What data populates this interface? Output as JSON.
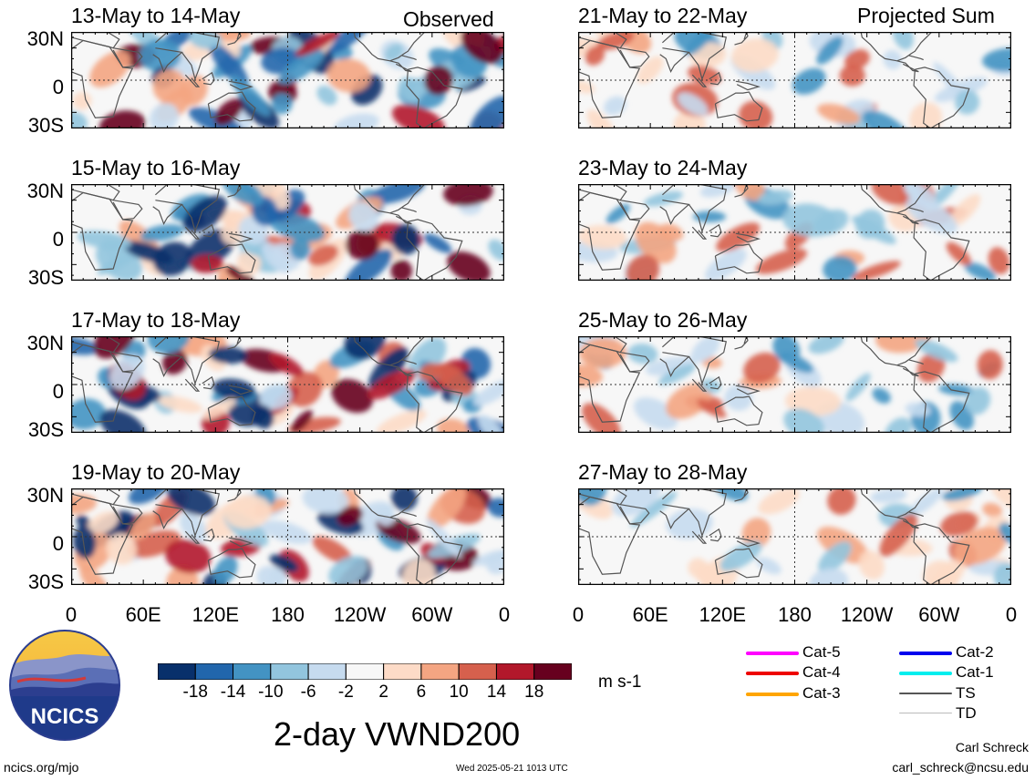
{
  "tags": {
    "observed": "Observed",
    "projected": "Projected Sum"
  },
  "panels": [
    {
      "title": "13-May to 14-May"
    },
    {
      "title": "15-May to 16-May"
    },
    {
      "title": "17-May to 18-May"
    },
    {
      "title": "19-May to 20-May"
    },
    {
      "title": "21-May to 22-May"
    },
    {
      "title": "23-May to 24-May"
    },
    {
      "title": "25-May to 26-May"
    },
    {
      "title": "27-May to 28-May"
    }
  ],
  "lat_labels": [
    "30N",
    "0",
    "30S"
  ],
  "lon_labels": [
    "0",
    "60E",
    "120E",
    "180",
    "120W",
    "60W",
    "0"
  ],
  "colorbar": {
    "ticks": [
      "-18",
      "-14",
      "-10",
      "-6",
      "-2",
      "2",
      "6",
      "10",
      "14",
      "18"
    ],
    "colors": [
      "#08306b",
      "#2166ac",
      "#4393c3",
      "#92c5de",
      "#c6dbef",
      "#f7f7f7",
      "#fddbc7",
      "#f4a582",
      "#d6604d",
      "#b2182b",
      "#67001f"
    ],
    "units": "m s-1"
  },
  "main_title": "2-day VWND200",
  "legend": [
    {
      "label": "Cat-5",
      "color": "#ff00ff"
    },
    {
      "label": "Cat-4",
      "color": "#ee0000"
    },
    {
      "label": "Cat-3",
      "color": "#ffa500"
    },
    {
      "label": "Cat-2",
      "color": "#0000ee"
    },
    {
      "label": "Cat-1",
      "color": "#00eeee"
    },
    {
      "label": "TS",
      "color": "#555555"
    },
    {
      "label": "TD",
      "color": "#bbbbbb"
    }
  ],
  "logo_text": "NCICS",
  "footer": {
    "site": "ncics.org/mjo",
    "timestamp": "Wed 2025-05-21 1013 UTC",
    "author": "Carl Schreck",
    "email": "carl_schreck@ncsu.edu"
  }
}
